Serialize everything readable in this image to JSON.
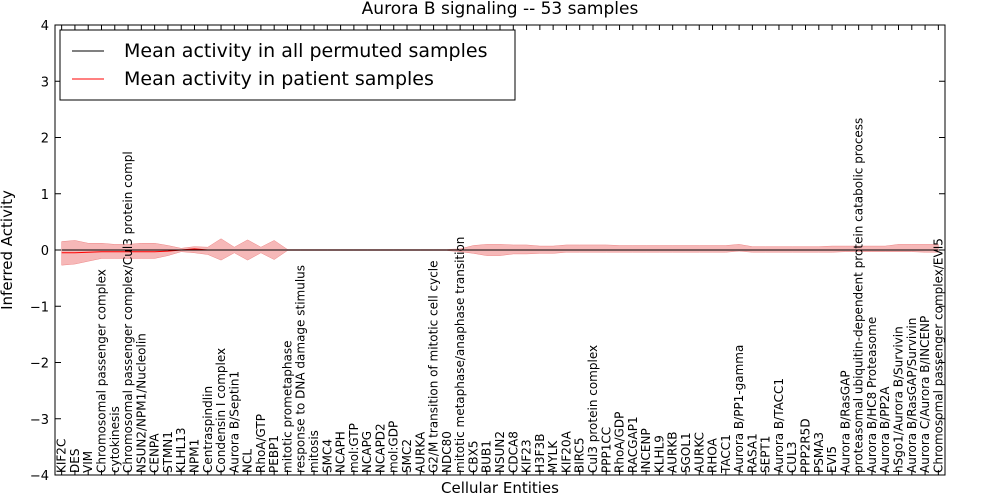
{
  "chart_data": {
    "type": "line",
    "title": "Aurora B signaling -- 53 samples",
    "xlabel": "Cellular Entities",
    "ylabel": "Inferred Activity",
    "ylim": [
      -4,
      4
    ],
    "yticks": [
      4,
      3,
      2,
      1,
      0,
      -1,
      -2,
      -3,
      -4
    ],
    "ytick_labels": [
      "4",
      "3",
      "2",
      "1",
      "0",
      "−1",
      "−2",
      "−3",
      "−4"
    ],
    "grid": false,
    "legend_position": "top-left",
    "categories": [
      "KIF2C",
      "DES",
      "VIM",
      "Chromosomal passenger complex",
      "cytokinesis",
      "Chromosomal passenger complex/Cul3 protein compl",
      "NSUN2/NPM1/Nucleolin",
      "CENPA",
      "STMN1",
      "KLHL13",
      "NPM1",
      "Centraspindlin",
      "Condensin I complex",
      "Aurora B/Septin1",
      "NCL",
      "RhoA/GTP",
      "PEBP1",
      "mitotic prometaphase",
      "response to DNA damage stimulus",
      "mitosis",
      "SMC4",
      "NCAPH",
      "mol:GTP",
      "NCAPG",
      "NCAPD2",
      "mol:GDP",
      "SMC2",
      "AURKA",
      "G2/M transition of mitotic cell cycle",
      "NDC80",
      "mitotic metaphase/anaphase transition",
      "CBX5",
      "BUB1",
      "NSUN2",
      "CDCA8",
      "KIF23",
      "H3F3B",
      "MYLK",
      "KIF20A",
      "BIRC5",
      "Cul3 protein complex",
      "PPP1CC",
      "RhoA/GDP",
      "RACGAP1",
      "INCENP",
      "KLHL9",
      "AURKB",
      "SGOL1",
      "AURKC",
      "RHOA",
      "TACC1",
      "Aurora B/PP1-gamma",
      "RASA1",
      "SEPT1",
      "Aurora B/TACC1",
      "CUL3",
      "PPP2R5D",
      "PSMA3",
      "EVI5",
      "Aurora B/RasGAP",
      "proteasomal ubiquitin-dependent protein catabolic process",
      "Aurora B/HC8 Proteasome",
      "Aurora B/PP2A",
      "hSgo1/Aurora B/Survivin",
      "Aurora B/RasGAP/Survivin",
      "Aurora C/Aurora B/INCENP",
      "Chromosomal passenger complex/EVI5"
    ],
    "series": [
      {
        "name": "Mean activity in all permuted samples",
        "color": "#000000",
        "values": [
          0.0,
          0.0,
          0.0,
          0.0,
          0.0,
          0.0,
          0.0,
          0.0,
          0.0,
          0.0,
          0.0,
          0.0,
          0.0,
          0.0,
          0.0,
          0.0,
          0.0,
          0.0,
          0.0,
          0.0,
          0.0,
          0.0,
          0.0,
          0.0,
          0.0,
          0.0,
          0.0,
          0.0,
          0.0,
          0.0,
          0.0,
          0.0,
          0.0,
          0.0,
          0.0,
          0.0,
          0.0,
          0.0,
          0.0,
          0.0,
          0.0,
          0.0,
          0.0,
          0.0,
          0.0,
          0.0,
          0.0,
          0.0,
          0.0,
          0.0,
          0.0,
          0.0,
          0.0,
          0.0,
          0.0,
          0.0,
          0.0,
          0.0,
          0.0,
          0.0,
          0.0,
          0.0,
          0.0,
          0.0,
          0.0,
          0.0,
          0.0
        ]
      },
      {
        "name": "Mean activity in patient samples",
        "color": "#ff0000",
        "fill": "#f4a6a6",
        "values": [
          -0.05,
          -0.05,
          -0.04,
          -0.03,
          -0.03,
          -0.03,
          -0.03,
          -0.03,
          -0.02,
          0.0,
          0.02,
          0.0,
          0.0,
          0.0,
          0.0,
          0.0,
          0.0,
          0.0,
          0.0,
          0.0,
          0.0,
          0.0,
          0.0,
          0.0,
          0.0,
          0.0,
          0.0,
          0.0,
          0.0,
          0.0,
          0.0,
          0.0,
          0.0,
          0.0,
          0.0,
          0.0,
          0.0,
          0.0,
          0.0,
          0.0,
          0.0,
          0.0,
          0.0,
          0.0,
          0.0,
          0.0,
          0.0,
          0.0,
          0.0,
          0.0,
          0.0,
          0.0,
          0.0,
          0.0,
          0.0,
          0.0,
          0.0,
          0.0,
          0.0,
          0.0,
          0.0,
          0.0,
          0.0,
          0.0,
          0.0,
          0.0,
          0.0
        ],
        "lower": [
          -0.27,
          -0.25,
          -0.2,
          -0.15,
          -0.15,
          -0.15,
          -0.15,
          -0.15,
          -0.1,
          -0.03,
          -0.05,
          -0.08,
          -0.18,
          -0.05,
          -0.18,
          -0.05,
          -0.17,
          -0.01,
          -0.01,
          -0.01,
          -0.01,
          -0.01,
          -0.01,
          -0.01,
          -0.01,
          -0.01,
          -0.01,
          -0.01,
          -0.01,
          -0.01,
          -0.03,
          -0.06,
          -0.1,
          -0.1,
          -0.07,
          -0.07,
          -0.06,
          -0.06,
          -0.04,
          -0.04,
          -0.04,
          -0.04,
          -0.04,
          -0.04,
          -0.04,
          -0.04,
          -0.04,
          -0.04,
          -0.04,
          -0.04,
          -0.04,
          -0.02,
          -0.04,
          -0.04,
          -0.04,
          -0.04,
          -0.04,
          -0.04,
          -0.04,
          -0.03,
          -0.03,
          -0.03,
          -0.03,
          -0.03,
          -0.03,
          -0.04,
          -0.04
        ],
        "upper": [
          0.15,
          0.17,
          0.12,
          0.12,
          0.1,
          0.1,
          0.12,
          0.12,
          0.08,
          0.03,
          0.06,
          0.05,
          0.2,
          0.05,
          0.18,
          0.05,
          0.17,
          0.01,
          0.01,
          0.01,
          0.01,
          0.01,
          0.01,
          0.01,
          0.01,
          0.01,
          0.01,
          0.01,
          0.01,
          0.01,
          0.02,
          0.08,
          0.1,
          0.1,
          0.09,
          0.09,
          0.07,
          0.07,
          0.09,
          0.09,
          0.09,
          0.09,
          0.08,
          0.08,
          0.08,
          0.08,
          0.08,
          0.08,
          0.08,
          0.08,
          0.08,
          0.1,
          0.06,
          0.06,
          0.06,
          0.06,
          0.06,
          0.06,
          0.07,
          0.07,
          0.07,
          0.07,
          0.07,
          0.1,
          0.1,
          0.1,
          0.1
        ]
      }
    ]
  }
}
